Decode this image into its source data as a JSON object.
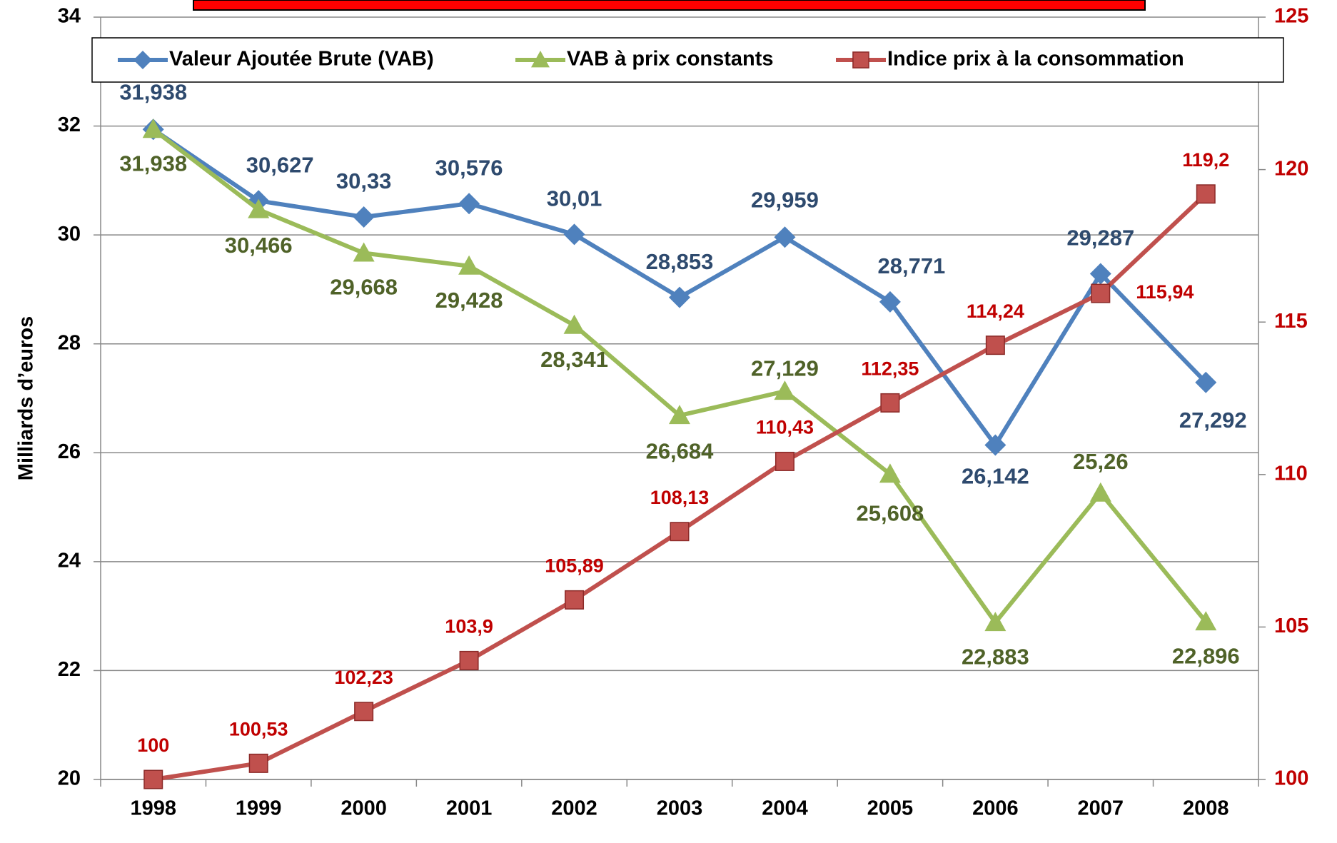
{
  "chart_data": {
    "type": "line",
    "ylabel": "Milliards d’euros",
    "categories": [
      "1998",
      "1999",
      "2000",
      "2001",
      "2002",
      "2003",
      "2004",
      "2005",
      "2006",
      "2007",
      "2008"
    ],
    "ylim": [
      20,
      34
    ],
    "yticks": [
      20,
      22,
      24,
      26,
      28,
      30,
      32,
      34
    ],
    "y2lim": [
      100,
      125
    ],
    "y2ticks": [
      100,
      105,
      110,
      115,
      120,
      125
    ],
    "grid": true,
    "legend": "top",
    "series": [
      {
        "name": "Valeur Ajoutée Brute (VAB)",
        "color": "#4f81bd",
        "label_color": "#2e4a6e",
        "marker": "diamond",
        "values": [
          31.938,
          30.627,
          30.33,
          30.576,
          30.01,
          28.853,
          29.959,
          28.771,
          26.142,
          29.287,
          27.292
        ],
        "value_labels": [
          "31,938",
          "30,627",
          "30,33",
          "30,576",
          "30,01",
          "28,853",
          "29,959",
          "28,771",
          "26,142",
          "29,287",
          "27,292"
        ]
      },
      {
        "name": "VAB à prix constants",
        "color": "#9bbb59",
        "label_color": "#4f6228",
        "marker": "triangle",
        "values": [
          31.938,
          30.466,
          29.668,
          29.428,
          28.341,
          26.684,
          27.129,
          25.608,
          22.883,
          25.26,
          22.896
        ],
        "value_labels": [
          "31,938",
          "30,466",
          "29,668",
          "29,428",
          "28,341",
          "26,684",
          "27,129",
          "25,608",
          "22,883",
          "25,26",
          "22,896"
        ]
      },
      {
        "name": "Indice prix à la consommation",
        "color": "#c0504d",
        "label_color": "#c00000",
        "marker": "square",
        "axis": "y2",
        "values": [
          100,
          100.53,
          102.23,
          103.9,
          105.89,
          108.13,
          110.43,
          112.35,
          114.24,
          115.94,
          119.2
        ],
        "value_labels": [
          "100",
          "100,53",
          "102,23",
          "103,9",
          "105,89",
          "108,13",
          "110,43",
          "112,35",
          "114,24",
          "115,94",
          "119,2"
        ]
      }
    ]
  }
}
